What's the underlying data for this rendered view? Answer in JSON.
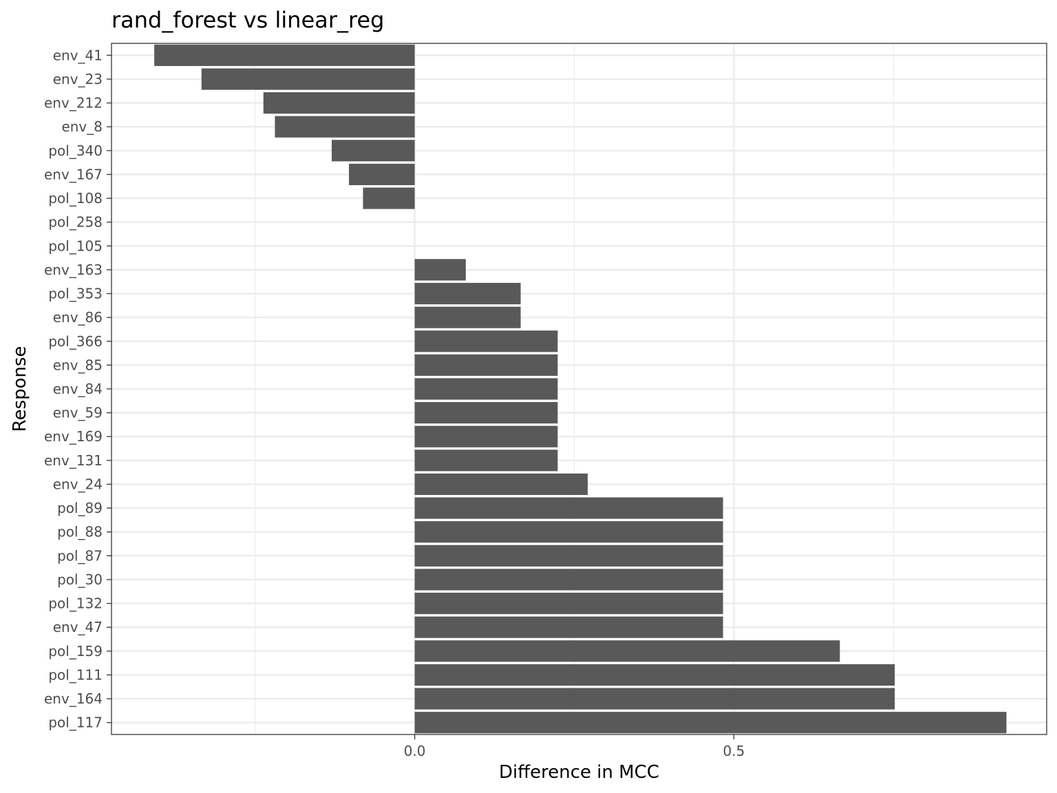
{
  "chart_data": {
    "type": "bar",
    "orientation": "horizontal",
    "title": "rand_forest  vs  linear_reg",
    "xlabel": "Difference in MCC",
    "ylabel": "Response",
    "xlim": [
      -0.475,
      0.99
    ],
    "xticks": [
      0.0,
      0.5
    ],
    "xtick_labels": [
      "0.0",
      "0.5"
    ],
    "grid": true,
    "bar_color": "#595959",
    "categories": [
      "env_41",
      "env_23",
      "env_212",
      "env_8",
      "pol_340",
      "env_167",
      "pol_108",
      "pol_258",
      "pol_105",
      "env_163",
      "pol_353",
      "env_86",
      "pol_366",
      "env_85",
      "env_84",
      "env_59",
      "env_169",
      "env_131",
      "env_24",
      "pol_89",
      "pol_88",
      "pol_87",
      "pol_30",
      "pol_132",
      "env_47",
      "pol_159",
      "pol_111",
      "env_164",
      "pol_117"
    ],
    "values": [
      -0.408,
      -0.334,
      -0.237,
      -0.219,
      -0.13,
      -0.103,
      -0.081,
      0.0,
      0.0,
      0.08,
      0.166,
      0.166,
      0.224,
      0.224,
      0.224,
      0.224,
      0.224,
      0.224,
      0.271,
      0.483,
      0.483,
      0.483,
      0.483,
      0.483,
      0.483,
      0.666,
      0.752,
      0.752,
      0.927
    ]
  }
}
